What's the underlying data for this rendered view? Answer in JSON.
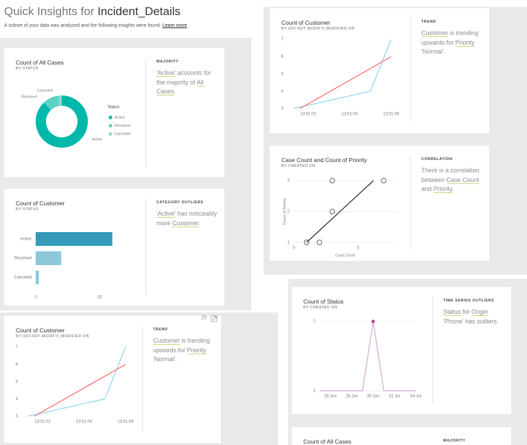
{
  "header": {
    "title": "Quick Insights for ",
    "dataset": "Incident_Details",
    "subtitle": "A subset of your data was analyzed and the following insights were found.",
    "link": "Learn more"
  },
  "cards": [
    {
      "title": "Count of All Cases",
      "subtitle": "BY STATUS",
      "insight_type": "MAJORITY",
      "insight": [
        {
          "text": "'Active'",
          "u": true
        },
        {
          "text": " accounts for the majority of ",
          "u": false
        },
        {
          "text": "All Cases",
          "u": true
        },
        {
          "text": ".",
          "u": false
        }
      ],
      "chart": {
        "type": "donut",
        "categories": [
          "Active",
          "Resolved",
          "Canceled"
        ],
        "values": [
          88,
          10,
          2
        ],
        "colors": [
          "#01b8aa",
          "#5ed1c7",
          "#8fd6d2"
        ],
        "legend_title": "Status"
      }
    },
    {
      "title": "Count of Customer",
      "subtitle": "BY STATUS",
      "insight_type": "CATEGORY OUTLIERS",
      "insight": [
        {
          "text": "'Active'",
          "u": true
        },
        {
          "text": " has noticeably more ",
          "u": false
        },
        {
          "text": "Customer",
          "u": true
        },
        {
          "text": ".",
          "u": false
        }
      ],
      "chart": {
        "type": "hbar",
        "categories": [
          "Active",
          "Resolved",
          "Canceled"
        ],
        "values": [
          24,
          8,
          1
        ],
        "colors": [
          "#3599b8",
          "#8cc8da",
          "#8cc8da"
        ],
        "xlim": [
          0,
          29
        ],
        "xticks": [
          0,
          20
        ]
      }
    },
    {
      "title": "Count of Customer",
      "subtitle": "BY (DO NOT MODIFY) MODIFIED ON",
      "insight_type": "TREND",
      "insight": [
        {
          "text": "Customer",
          "u": true
        },
        {
          "text": " is trending upwards for ",
          "u": false
        },
        {
          "text": "Priority",
          "u": true
        },
        {
          "text": " 'Normal'.",
          "u": false
        }
      ],
      "chart": {
        "type": "line",
        "series": [
          {
            "color": "#8ad4eb",
            "x": [
              1.3,
              5,
              6
            ],
            "values": [
              3,
              4,
              7
            ]
          },
          {
            "color": "#fd625e",
            "x": [
              1.6,
              6
            ],
            "values": [
              3,
              6
            ]
          }
        ],
        "xlim": [
          1,
          6.3
        ],
        "xticks": [
          {
            "value": 2,
            "label": "13:51:02"
          },
          {
            "value": 4,
            "label": "13:51:04"
          },
          {
            "value": 6,
            "label": "13:51:06"
          }
        ],
        "ylim": [
          3,
          7.1
        ],
        "yticks": [
          3,
          4,
          5,
          6,
          7
        ],
        "grid": false
      }
    },
    {
      "title": "Case Count and Count of Priority",
      "subtitle": "BY CREATED ON",
      "insight_type": "CORRELATION",
      "insight": [
        {
          "text": "There is a correlation between ",
          "u": false
        },
        {
          "text": "Case Count",
          "u": true
        },
        {
          "text": " and ",
          "u": false
        },
        {
          "text": "Priority",
          "u": true
        },
        {
          "text": ".",
          "u": false
        }
      ],
      "chart": {
        "type": "scatter",
        "x_label": "Case Count",
        "y_label": "Count of Priority",
        "x": [
          1,
          2,
          3,
          3,
          7
        ],
        "values": [
          1,
          1,
          2,
          3,
          3
        ],
        "color": "#333333",
        "trend": {
          "x": [
            1,
            6.2
          ],
          "values": [
            1,
            3
          ]
        },
        "trend_color": "#222222",
        "xlim": [
          0,
          8
        ],
        "xticks": [
          0,
          5
        ],
        "ylim": [
          1,
          3
        ],
        "yticks": [
          1,
          2,
          3
        ],
        "grid": true
      }
    },
    {
      "title": "Count of Customer",
      "subtitle": "BY (DO NOT MODIFY) MODIFIED ON",
      "insight_type": "TREND",
      "insight": [
        {
          "text": "Customer",
          "u": true
        },
        {
          "text": " is trending upwards for ",
          "u": false
        },
        {
          "text": "Priority",
          "u": true
        },
        {
          "text": " 'Normal'.",
          "u": false
        }
      ],
      "chart": {
        "type": "line",
        "series": [
          {
            "color": "#8ad4eb",
            "x": [
              1.3,
              5,
              6
            ],
            "values": [
              3,
              4,
              7
            ]
          },
          {
            "color": "#fd625e",
            "x": [
              1.6,
              6
            ],
            "values": [
              3,
              6
            ]
          }
        ],
        "xlim": [
          1,
          6.3
        ],
        "xticks": [
          {
            "value": 2,
            "label": "13:51:02"
          },
          {
            "value": 4,
            "label": "13:51:04"
          },
          {
            "value": 6,
            "label": "13:51:06"
          }
        ],
        "ylim": [
          3,
          7.1
        ],
        "yticks": [
          3,
          4,
          5,
          6,
          7
        ],
        "grid": false
      }
    },
    {
      "title": "Count of Status",
      "subtitle": "BY CREATED ON",
      "insight_type": "TIME SERIES OUTLIERS",
      "insight": [
        {
          "text": "Status",
          "u": true
        },
        {
          "text": " for ",
          "u": false
        },
        {
          "text": "Origin",
          "u": true
        },
        {
          "text": " 'Phone' has outliers.",
          "u": false
        }
      ],
      "chart": {
        "type": "line",
        "categories": [
          null,
          "26 Jun",
          null,
          "28 Jun",
          null,
          "30 Jun",
          null,
          "02 Jul",
          null,
          "04 Jul"
        ],
        "series": [
          {
            "color": "#d5a5cf",
            "values": [
              1,
              1,
              1,
              1,
              1,
              2,
              1,
              1,
              1,
              1
            ]
          }
        ],
        "outliers": [
          5
        ],
        "outlier_color": "#b8479a",
        "ylim": [
          1,
          2.05
        ],
        "yticks": [
          1,
          2
        ],
        "grid": true
      }
    },
    {
      "title": "Count of All Cases",
      "insight_type": "MAJORITY"
    }
  ]
}
